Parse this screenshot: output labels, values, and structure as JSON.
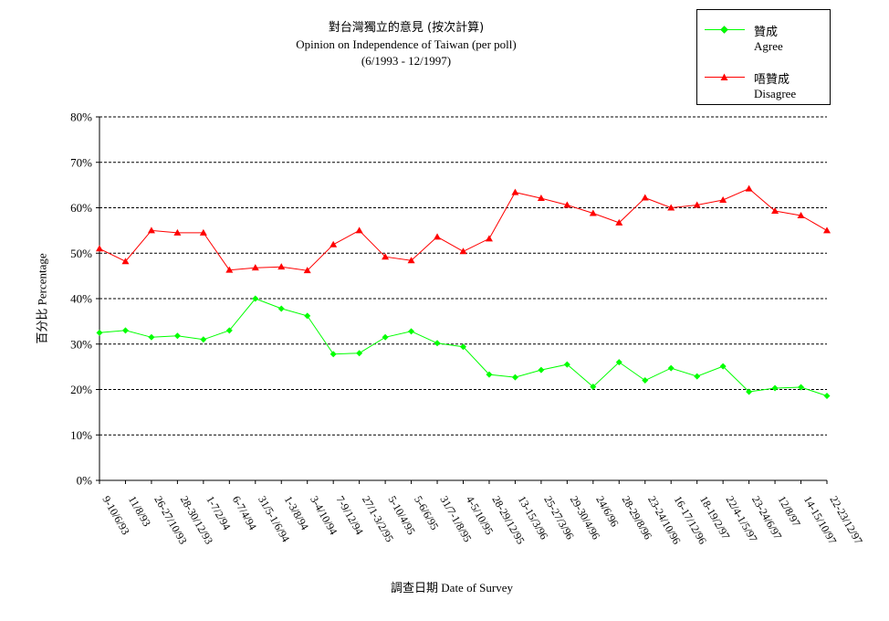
{
  "chart_data": {
    "type": "line",
    "title": "對台灣獨立的意見 (按次計算)",
    "subtitle": "Opinion on Independence of Taiwan (per poll)",
    "period": "(6/1993 - 12/1997)",
    "ylabel_zh": "百分比",
    "ylabel_en": "Percentage",
    "xlabel_zh": "調查日期",
    "xlabel_en": "Date of Survey",
    "ylim": [
      0,
      80
    ],
    "yticks": [
      "0%",
      "10%",
      "20%",
      "30%",
      "40%",
      "50%",
      "60%",
      "70%",
      "80%"
    ],
    "grid": true,
    "legend_position": "top-right",
    "categories": [
      "9-10/6/93",
      "11/8/93",
      "26-27/10/93",
      "28-30/12/93",
      "1-7/2/94",
      "6-7/4/94",
      "31/5-1/6/94",
      "1-3/8/94",
      "3-4/10/94",
      "7-9/12/94",
      "27/1-3/2/95",
      "5-10/4/95",
      "5-6/6/95",
      "31/7-1/8/95",
      "4-5/10/95",
      "28-29/12/95",
      "13-15/3/96",
      "25-27/3/96",
      "29-30/4/96",
      "24/6/96",
      "28-29/8/96",
      "23-24/10/96",
      "16-17/12/96",
      "18-19/2/97",
      "22/4-1/5/97",
      "23-24/6/97",
      "12/8/97",
      "14-15/10/97",
      "22-23/12/97"
    ],
    "series": [
      {
        "name_zh": "贊成",
        "name_en": "Agree",
        "color": "#00ff00",
        "marker": "diamond",
        "values": [
          32.5,
          33,
          31.5,
          31.8,
          31,
          33,
          40,
          37.8,
          36.2,
          27.8,
          28,
          31.5,
          32.8,
          30.2,
          29.4,
          23.3,
          22.7,
          24.3,
          25.5,
          20.6,
          26,
          22,
          24.7,
          22.9,
          25.1,
          19.5,
          20.3,
          20.5,
          18.6
        ]
      },
      {
        "name_zh": "唔贊成",
        "name_en": "Disagree",
        "color": "#ff0000",
        "marker": "triangle",
        "values": [
          51,
          48.2,
          55,
          54.5,
          54.5,
          46.3,
          46.8,
          47,
          46.2,
          51.9,
          55,
          49.2,
          48.4,
          53.6,
          50.4,
          53.2,
          63.4,
          62.1,
          60.6,
          58.8,
          56.7,
          62.2,
          60,
          60.6,
          61.7,
          64.2,
          59.3,
          58.3,
          55
        ]
      }
    ]
  }
}
